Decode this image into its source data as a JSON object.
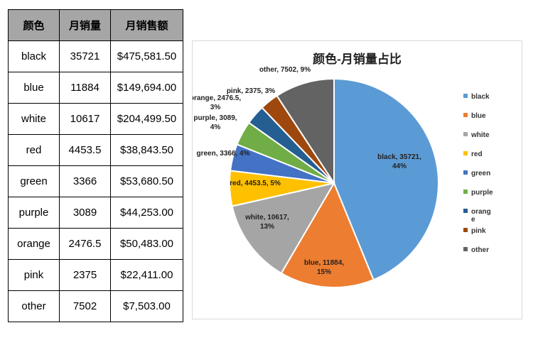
{
  "table": {
    "headers": [
      "颜色",
      "月销量",
      "月销售额"
    ],
    "rows": [
      [
        "black",
        "35721",
        "$475,581.50"
      ],
      [
        "blue",
        "11884",
        "$149,694.00"
      ],
      [
        "white",
        "10617",
        "$204,499.50"
      ],
      [
        "red",
        "4453.5",
        "$38,843.50"
      ],
      [
        "green",
        "3366",
        "$53,680.50"
      ],
      [
        "purple",
        "3089",
        "$44,253.00"
      ],
      [
        "orange",
        "2476.5",
        "$50,483.00"
      ],
      [
        "pink",
        "2375",
        "$22,411.00"
      ],
      [
        "other",
        "7502",
        "$7,503.00"
      ]
    ]
  },
  "chart_data": {
    "type": "pie",
    "title": "颜色-月销量占比",
    "categories": [
      "black",
      "blue",
      "white",
      "red",
      "green",
      "purple",
      "orange",
      "pink",
      "other"
    ],
    "values": [
      35721,
      11884,
      10617,
      4453.5,
      3366,
      3089,
      2476.5,
      2375,
      7502
    ],
    "percent_labels": [
      "44%",
      "15%",
      "13%",
      "5%",
      "4%",
      "4%",
      "3%",
      "3%",
      "9%"
    ],
    "colors": [
      "#5b9bd5",
      "#ed7d31",
      "#a5a5a5",
      "#ffc000",
      "#4472c4",
      "#70ad47",
      "#255e91",
      "#9e480e",
      "#636363"
    ],
    "legend_position": "right",
    "legend_labels": [
      "black",
      "blue",
      "white",
      "red",
      "green",
      "purple",
      "orang\ne",
      "pink",
      "other"
    ],
    "data_labels": [
      [
        "black, 35721,",
        "44%"
      ],
      [
        "blue, 11884,",
        "15%"
      ],
      [
        "white, 10617,",
        "13%"
      ],
      [
        "red, 4453.5, 5%"
      ],
      [
        "green, 3366, 4%"
      ],
      [
        "purple, 3089,",
        "4%"
      ],
      [
        "orange, 2476.5,",
        "3%"
      ],
      [
        "pink, 2375, 3%"
      ],
      [
        "other, 7502, 9%"
      ]
    ]
  }
}
